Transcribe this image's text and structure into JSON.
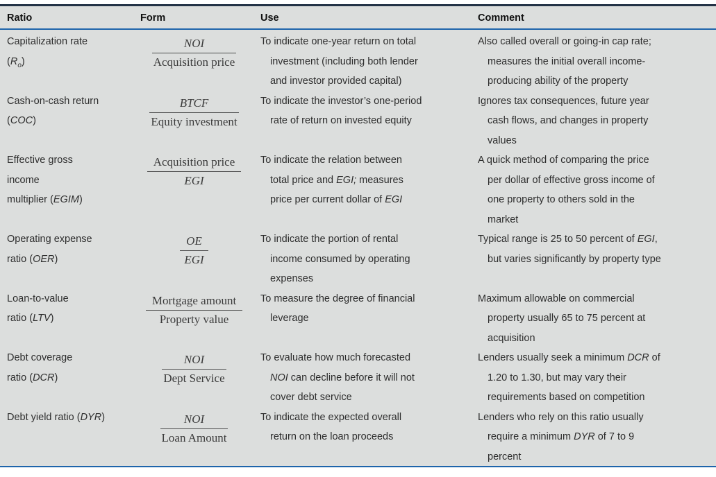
{
  "table": {
    "colors": {
      "rule_top": "#233246",
      "rule_blue": "#1e64ab",
      "background": "#dcdedd"
    },
    "columns": [
      "Ratio",
      "Form",
      "Use",
      "Comment"
    ],
    "rows": [
      {
        "ratio": "Capitalization rate\n(*R~o~*)",
        "form_numerator": "*NOI*",
        "form_denominator": "Acquisition price",
        "use": "To indicate one-year return on total\ninvestment (including both lender\nand investor provided capital)",
        "comment": "Also called overall or going-in cap rate;\nmeasures the initial overall income-\nproducing ability of the property"
      },
      {
        "ratio": "Cash-on-cash return\n(*COC*)",
        "form_numerator": "*BTCF*",
        "form_denominator": "Equity investment",
        "use": "To indicate the investor’s one-period\nrate of return on invested equity",
        "comment": "Ignores tax consequences, future year\ncash flows, and changes in property\nvalues"
      },
      {
        "ratio": "Effective gross\nincome\nmultiplier (*EGIM*)",
        "form_numerator": "Acquisition price",
        "form_denominator": "*EGI*",
        "use": "To indicate the relation between\ntotal price and *EGI;* measures\nprice per current dollar of *EGI*",
        "comment": "A quick method of comparing the price\nper dollar of effective gross income of\none property to others sold in the\nmarket"
      },
      {
        "ratio": "Operating expense\nratio (*OER*)",
        "form_numerator": "*OE*",
        "form_denominator": "*EGI*",
        "use": "To indicate the portion of rental\nincome consumed by operating\nexpenses",
        "comment": "Typical range is 25 to 50 percent of *EGI*,\nbut varies significantly by property type"
      },
      {
        "ratio": "Loan-to-value\nratio (*LTV*)",
        "form_numerator": "Mortgage amount",
        "form_denominator": "Property value",
        "use": "To measure the degree of financial\nleverage",
        "comment": "Maximum allowable on commercial\nproperty usually 65 to 75 percent at\nacquisition"
      },
      {
        "ratio": "Debt coverage\nratio (*DCR*)",
        "form_numerator": "*NOI*",
        "form_denominator": "Dept Service",
        "use": "To evaluate how much forecasted\n*NOI* can decline before it will not\ncover debt service",
        "comment": "Lenders usually seek a minimum *DCR* of\n1.20 to 1.30, but may vary their\nrequirements based on competition"
      },
      {
        "ratio": "Debt yield ratio (*DYR*)",
        "form_numerator": "*NOI*",
        "form_denominator": "Loan Amount",
        "use": "To indicate the expected overall\nreturn on the loan proceeds",
        "comment": "Lenders who rely on this ratio usually\nrequire a minimum *DYR* of 7 to 9\npercent"
      }
    ]
  }
}
